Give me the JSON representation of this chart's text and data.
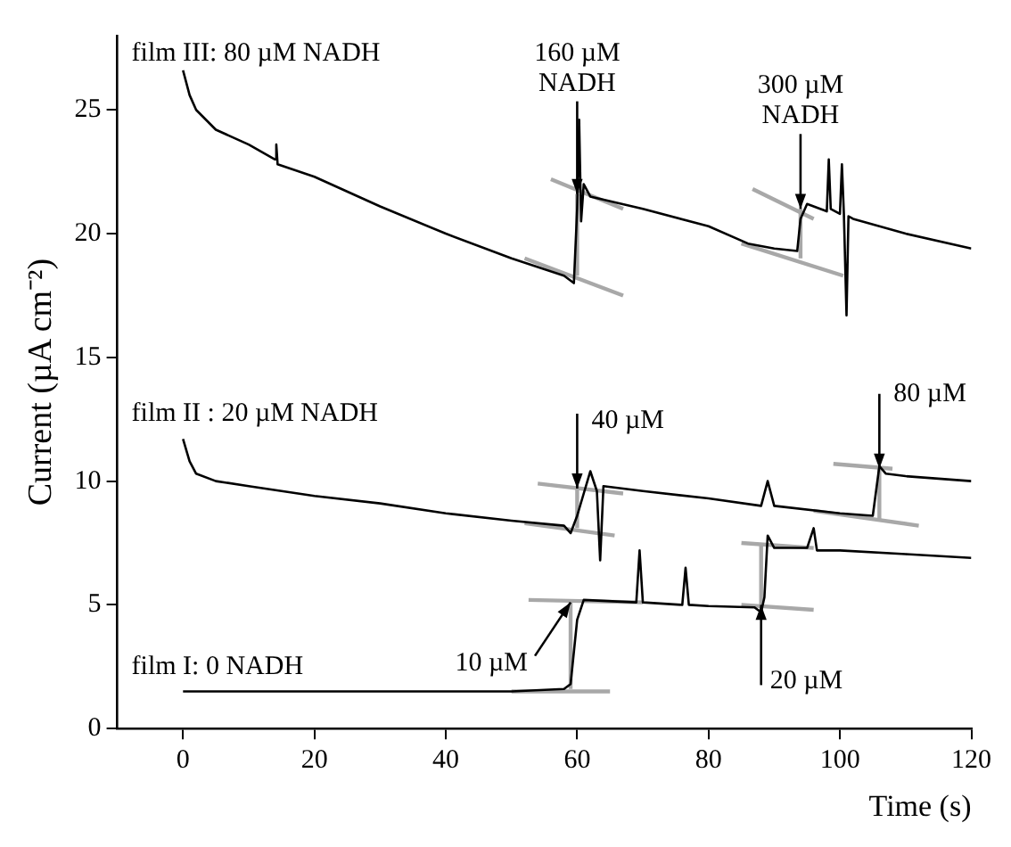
{
  "chart_data": {
    "type": "line",
    "xlabel": "Time (s)",
    "ylabel": "Current (µA cm⁻²)",
    "xlim": [
      -10,
      120
    ],
    "xticks": [
      0,
      20,
      40,
      60,
      80,
      100,
      120
    ],
    "ylim": [
      0,
      28
    ],
    "yticks": [
      0,
      5,
      10,
      15,
      20,
      25
    ],
    "grid": false,
    "legend": false,
    "marker": "none",
    "line_style": "solid",
    "series": [
      {
        "name": "film III: 80 µM NADH",
        "color": "#000000",
        "x": [
          0,
          1,
          2,
          5,
          10,
          14,
          14.2,
          14.4,
          20,
          30,
          40,
          50,
          58,
          59.5,
          60,
          60.3,
          60.6,
          61,
          62,
          70,
          80,
          86,
          90,
          93.5,
          94,
          95,
          98,
          98.3,
          98.6,
          100,
          100.3,
          100.6,
          101,
          101.3,
          102,
          110,
          120
        ],
        "values": [
          26.6,
          25.6,
          25.0,
          24.2,
          23.6,
          23.0,
          23.6,
          22.8,
          22.3,
          21.1,
          20.0,
          19.0,
          18.3,
          18.0,
          21.0,
          24.6,
          20.5,
          22.0,
          21.5,
          21.0,
          20.3,
          19.6,
          19.4,
          19.3,
          20.6,
          21.2,
          20.9,
          23.0,
          21.0,
          20.8,
          22.8,
          20.8,
          16.7,
          20.7,
          20.6,
          20.0,
          19.4
        ]
      },
      {
        "name": "film II : 20 µM NADH",
        "color": "#000000",
        "x": [
          0,
          1,
          2,
          5,
          10,
          20,
          30,
          40,
          50,
          58,
          59,
          60,
          61,
          62,
          63,
          63.5,
          64,
          70,
          80,
          88,
          89,
          90,
          100,
          105,
          106,
          107,
          110,
          120
        ],
        "values": [
          11.7,
          10.8,
          10.3,
          10.0,
          9.8,
          9.4,
          9.1,
          8.7,
          8.4,
          8.2,
          7.9,
          8.6,
          9.5,
          10.4,
          9.6,
          6.8,
          9.8,
          9.6,
          9.3,
          9.0,
          10.0,
          9.0,
          8.7,
          8.6,
          10.6,
          10.3,
          10.2,
          10.0
        ]
      },
      {
        "name": "film I: 0 NADH",
        "color": "#000000",
        "x": [
          0,
          10,
          20,
          30,
          40,
          50,
          58,
          59,
          60,
          61,
          69,
          69.5,
          70,
          76,
          76.5,
          77,
          80,
          87,
          88,
          88.5,
          89,
          90,
          95,
          96,
          96.5,
          100,
          110,
          120
        ],
        "values": [
          1.5,
          1.5,
          1.5,
          1.5,
          1.5,
          1.5,
          1.6,
          1.8,
          4.4,
          5.2,
          5.1,
          7.2,
          5.1,
          5.0,
          6.5,
          5.0,
          4.95,
          4.9,
          4.7,
          5.3,
          7.8,
          7.3,
          7.3,
          8.1,
          7.2,
          7.2,
          7.05,
          6.9
        ]
      },
      {
        "color": "#a8a8a8",
        "x": [
          56,
          67
        ],
        "values": [
          22.2,
          21.0
        ]
      },
      {
        "color": "#a8a8a8",
        "x": [
          52,
          67
        ],
        "values": [
          19.0,
          17.5
        ]
      },
      {
        "color": "#a8a8a8",
        "x": [
          60,
          60
        ],
        "values": [
          18.3,
          21.6
        ]
      },
      {
        "color": "#a8a8a8",
        "x": [
          86.7,
          96
        ],
        "values": [
          21.8,
          20.6
        ]
      },
      {
        "color": "#a8a8a8",
        "x": [
          85,
          100.5
        ],
        "values": [
          19.6,
          18.3
        ]
      },
      {
        "color": "#a8a8a8",
        "x": [
          94,
          94
        ],
        "values": [
          19.0,
          21.0
        ]
      },
      {
        "color": "#a8a8a8",
        "x": [
          54,
          67
        ],
        "values": [
          9.9,
          9.5
        ]
      },
      {
        "color": "#a8a8a8",
        "x": [
          52,
          65.7
        ],
        "values": [
          8.3,
          7.8
        ]
      },
      {
        "color": "#a8a8a8",
        "x": [
          60,
          60
        ],
        "values": [
          8.1,
          9.7
        ]
      },
      {
        "color": "#a8a8a8",
        "x": [
          99,
          108
        ],
        "values": [
          10.7,
          10.5
        ]
      },
      {
        "color": "#a8a8a8",
        "x": [
          96,
          112
        ],
        "values": [
          8.8,
          8.2
        ]
      },
      {
        "color": "#a8a8a8",
        "x": [
          106,
          106
        ],
        "values": [
          8.4,
          10.5
        ]
      },
      {
        "color": "#a8a8a8",
        "x": [
          52.6,
          70
        ],
        "values": [
          5.2,
          5.1
        ]
      },
      {
        "color": "#a8a8a8",
        "x": [
          50,
          65
        ],
        "values": [
          1.5,
          1.5
        ]
      },
      {
        "color": "#a8a8a8",
        "x": [
          59,
          59
        ],
        "values": [
          1.6,
          5.1
        ]
      },
      {
        "color": "#a8a8a8",
        "x": [
          85,
          96
        ],
        "values": [
          5.0,
          4.8
        ]
      },
      {
        "color": "#a8a8a8",
        "x": [
          85,
          96
        ],
        "values": [
          7.5,
          7.3
        ]
      },
      {
        "color": "#a8a8a8",
        "x": [
          88,
          88
        ],
        "values": [
          5.0,
          7.4
        ]
      }
    ],
    "annotations": [
      {
        "text": "160 µM\nNADH",
        "x": 60,
        "y": 21.6
      },
      {
        "text": "300 µM\nNADH",
        "x": 94,
        "y": 21.0
      },
      {
        "text": "40 µM",
        "x": 60,
        "y": 9.7
      },
      {
        "text": "80 µM",
        "x": 106,
        "y": 10.5
      },
      {
        "text": "10 µM",
        "x": 59,
        "y": 5.1
      },
      {
        "text": "20 µM",
        "x": 88,
        "y": 5.0
      }
    ]
  }
}
